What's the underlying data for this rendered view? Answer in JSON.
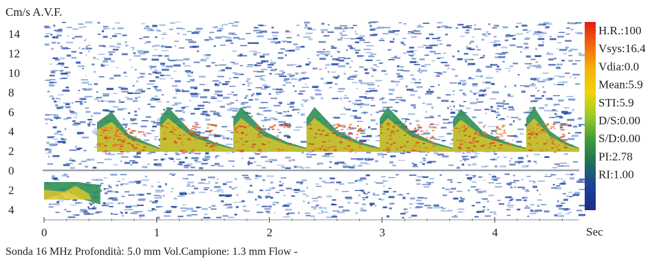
{
  "chart_data": {
    "type": "area",
    "title": "Cm/s A.V.F.",
    "xlabel": "Sec",
    "ylabel": "Cm/s A.V.F.",
    "x_ticks": [
      0,
      1,
      2,
      3,
      4
    ],
    "y_ticks_positive": [
      14,
      12,
      10,
      8,
      6,
      4,
      2,
      0
    ],
    "y_ticks_negative": [
      2,
      4
    ],
    "xlim": [
      0,
      4.75
    ],
    "ylim": [
      -4.5,
      15
    ],
    "grid": false,
    "legend": "right colorbar (red high, blue low)",
    "series": [
      {
        "name": "Vsys",
        "x": [
          0.6,
          1.1,
          1.75,
          2.4,
          3.05,
          3.7,
          4.35
        ],
        "values": [
          6.0,
          6.5,
          6.5,
          6.5,
          6.5,
          6.3,
          6.5
        ]
      }
    ],
    "reverse_flow": {
      "x": [
        0.0,
        0.5
      ],
      "values": [
        -3.0,
        -3.5
      ]
    },
    "baseline_velocity": 1.9,
    "stats": [
      "H.R.:100",
      "Vsys:16.4",
      "Vdia:0.0",
      "Mean:5.9",
      "STI:5.9",
      "D/S:0.00",
      "S/D:0.00",
      "PI:2.78",
      "RI:1.00"
    ],
    "colorbar_colors": [
      "#e61b12",
      "#f26a0c",
      "#f4b30b",
      "#f2d40a",
      "#9ccb29",
      "#3f9a3a",
      "#1e6f5a",
      "#1f3f9a",
      "#1a2d8c"
    ]
  },
  "footer": "Sonda 16 MHz  Profondità: 5.0  mm  Vol.Campione: 1.3 mm  Flow -",
  "colors": {
    "noise_blue": "#2a4fa8",
    "noise_light": "#7fa3d8",
    "flow_green": "#2f8f55",
    "flow_yellow": "#d9c62a",
    "flow_orange": "#e7732b",
    "flow_red": "#d73a22",
    "baseline": "#9aa0a8"
  }
}
